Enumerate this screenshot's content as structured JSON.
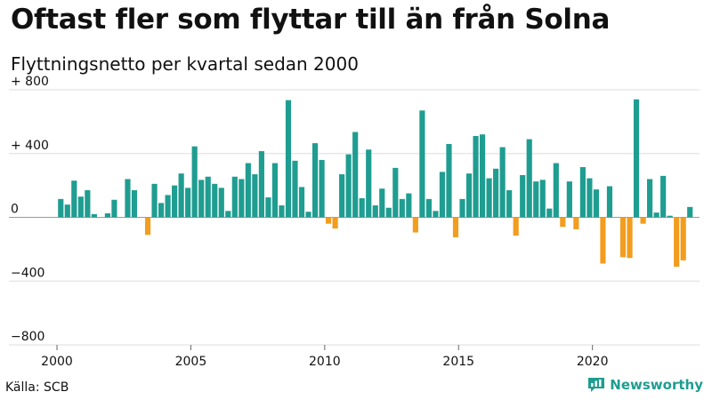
{
  "title": "Oftast fler som flyttar till än från Solna",
  "subtitle": "Flyttningsnetto per kvartal sedan 2000",
  "source": "Källa: SCB",
  "brand": {
    "name": "Newsworthy",
    "icon": "bar-chart-logo-icon"
  },
  "colors": {
    "positive": "#1f9d91",
    "negative": "#f29d1f",
    "grid": "#dddddd",
    "baseline": "#999999"
  },
  "chart_data": {
    "type": "bar",
    "title": "Oftast fler som flyttar till än från Solna",
    "subtitle": "Flyttningsnetto per kvartal sedan 2000",
    "ylim": [
      -800,
      800
    ],
    "yticks": [
      {
        "value": 800,
        "label": "+ 800"
      },
      {
        "value": 400,
        "label": "+ 400"
      },
      {
        "value": 0,
        "label": "0"
      },
      {
        "value": -400,
        "label": "−400"
      },
      {
        "value": -800,
        "label": "−800"
      }
    ],
    "xlim": [
      2000,
      2024
    ],
    "xticks": [
      {
        "value": 2000,
        "label": "2000"
      },
      {
        "value": 2005,
        "label": "2005"
      },
      {
        "value": 2010,
        "label": "2010"
      },
      {
        "value": 2015,
        "label": "2015"
      },
      {
        "value": 2020,
        "label": "2020"
      }
    ],
    "grid": true,
    "series": [
      {
        "start": "2000 Q1",
        "frequency": "quarterly",
        "values": [
          115,
          80,
          230,
          130,
          170,
          20,
          0,
          25,
          110,
          0,
          240,
          170,
          0,
          -110,
          210,
          90,
          140,
          200,
          275,
          185,
          445,
          235,
          255,
          210,
          185,
          40,
          255,
          240,
          340,
          270,
          415,
          125,
          340,
          75,
          735,
          355,
          190,
          35,
          465,
          360,
          -40,
          -70,
          270,
          395,
          535,
          120,
          425,
          75,
          180,
          60,
          310,
          115,
          150,
          -95,
          670,
          115,
          40,
          285,
          460,
          -125,
          115,
          275,
          510,
          520,
          245,
          305,
          440,
          170,
          -115,
          265,
          490,
          225,
          235,
          55,
          340,
          -60,
          225,
          -75,
          315,
          245,
          175,
          -290,
          195,
          0,
          -250,
          -255,
          740,
          -40,
          240,
          30,
          260,
          10,
          -310,
          -270,
          65
        ]
      }
    ]
  }
}
